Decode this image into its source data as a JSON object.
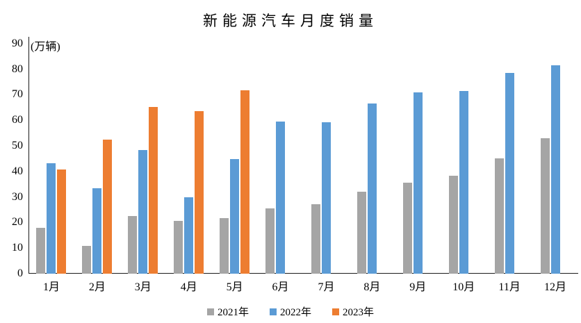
{
  "chart_data": {
    "type": "bar",
    "title": "新能源汽车月度销量",
    "unit_label": "(万辆)",
    "categories": [
      "1月",
      "2月",
      "3月",
      "4月",
      "5月",
      "6月",
      "7月",
      "8月",
      "9月",
      "10月",
      "11月",
      "12月"
    ],
    "series": [
      {
        "name": "2021年",
        "color": "#A5A5A5",
        "values": [
          17.9,
          11.0,
          22.6,
          20.6,
          21.7,
          25.6,
          27.1,
          32.1,
          35.7,
          38.3,
          45.0,
          53.1
        ]
      },
      {
        "name": "2022年",
        "color": "#5B9BD5",
        "values": [
          43.1,
          33.4,
          48.4,
          29.9,
          44.7,
          59.6,
          59.3,
          66.6,
          70.8,
          71.4,
          78.6,
          81.4
        ]
      },
      {
        "name": "2023年",
        "color": "#ED7D31",
        "values": [
          40.8,
          52.5,
          65.3,
          63.6,
          71.7,
          null,
          null,
          null,
          null,
          null,
          null,
          null
        ]
      }
    ],
    "y_axis": {
      "min": 0,
      "max": 90,
      "step": 10,
      "tick_labels": [
        "0",
        "10",
        "20",
        "30",
        "40",
        "50",
        "60",
        "70",
        "80",
        "90"
      ]
    },
    "x_axis": {
      "tick_labels": [
        "1月",
        "2月",
        "3月",
        "4月",
        "5月",
        "6月",
        "7月",
        "8月",
        "9月",
        "10月",
        "11月",
        "12月"
      ]
    },
    "legend": {
      "position": "bottom",
      "entries": [
        "2021年",
        "2022年",
        "2023年"
      ]
    },
    "grid": false,
    "background_color": "#FFFFFF",
    "axis_color": "#1A1A1A"
  }
}
